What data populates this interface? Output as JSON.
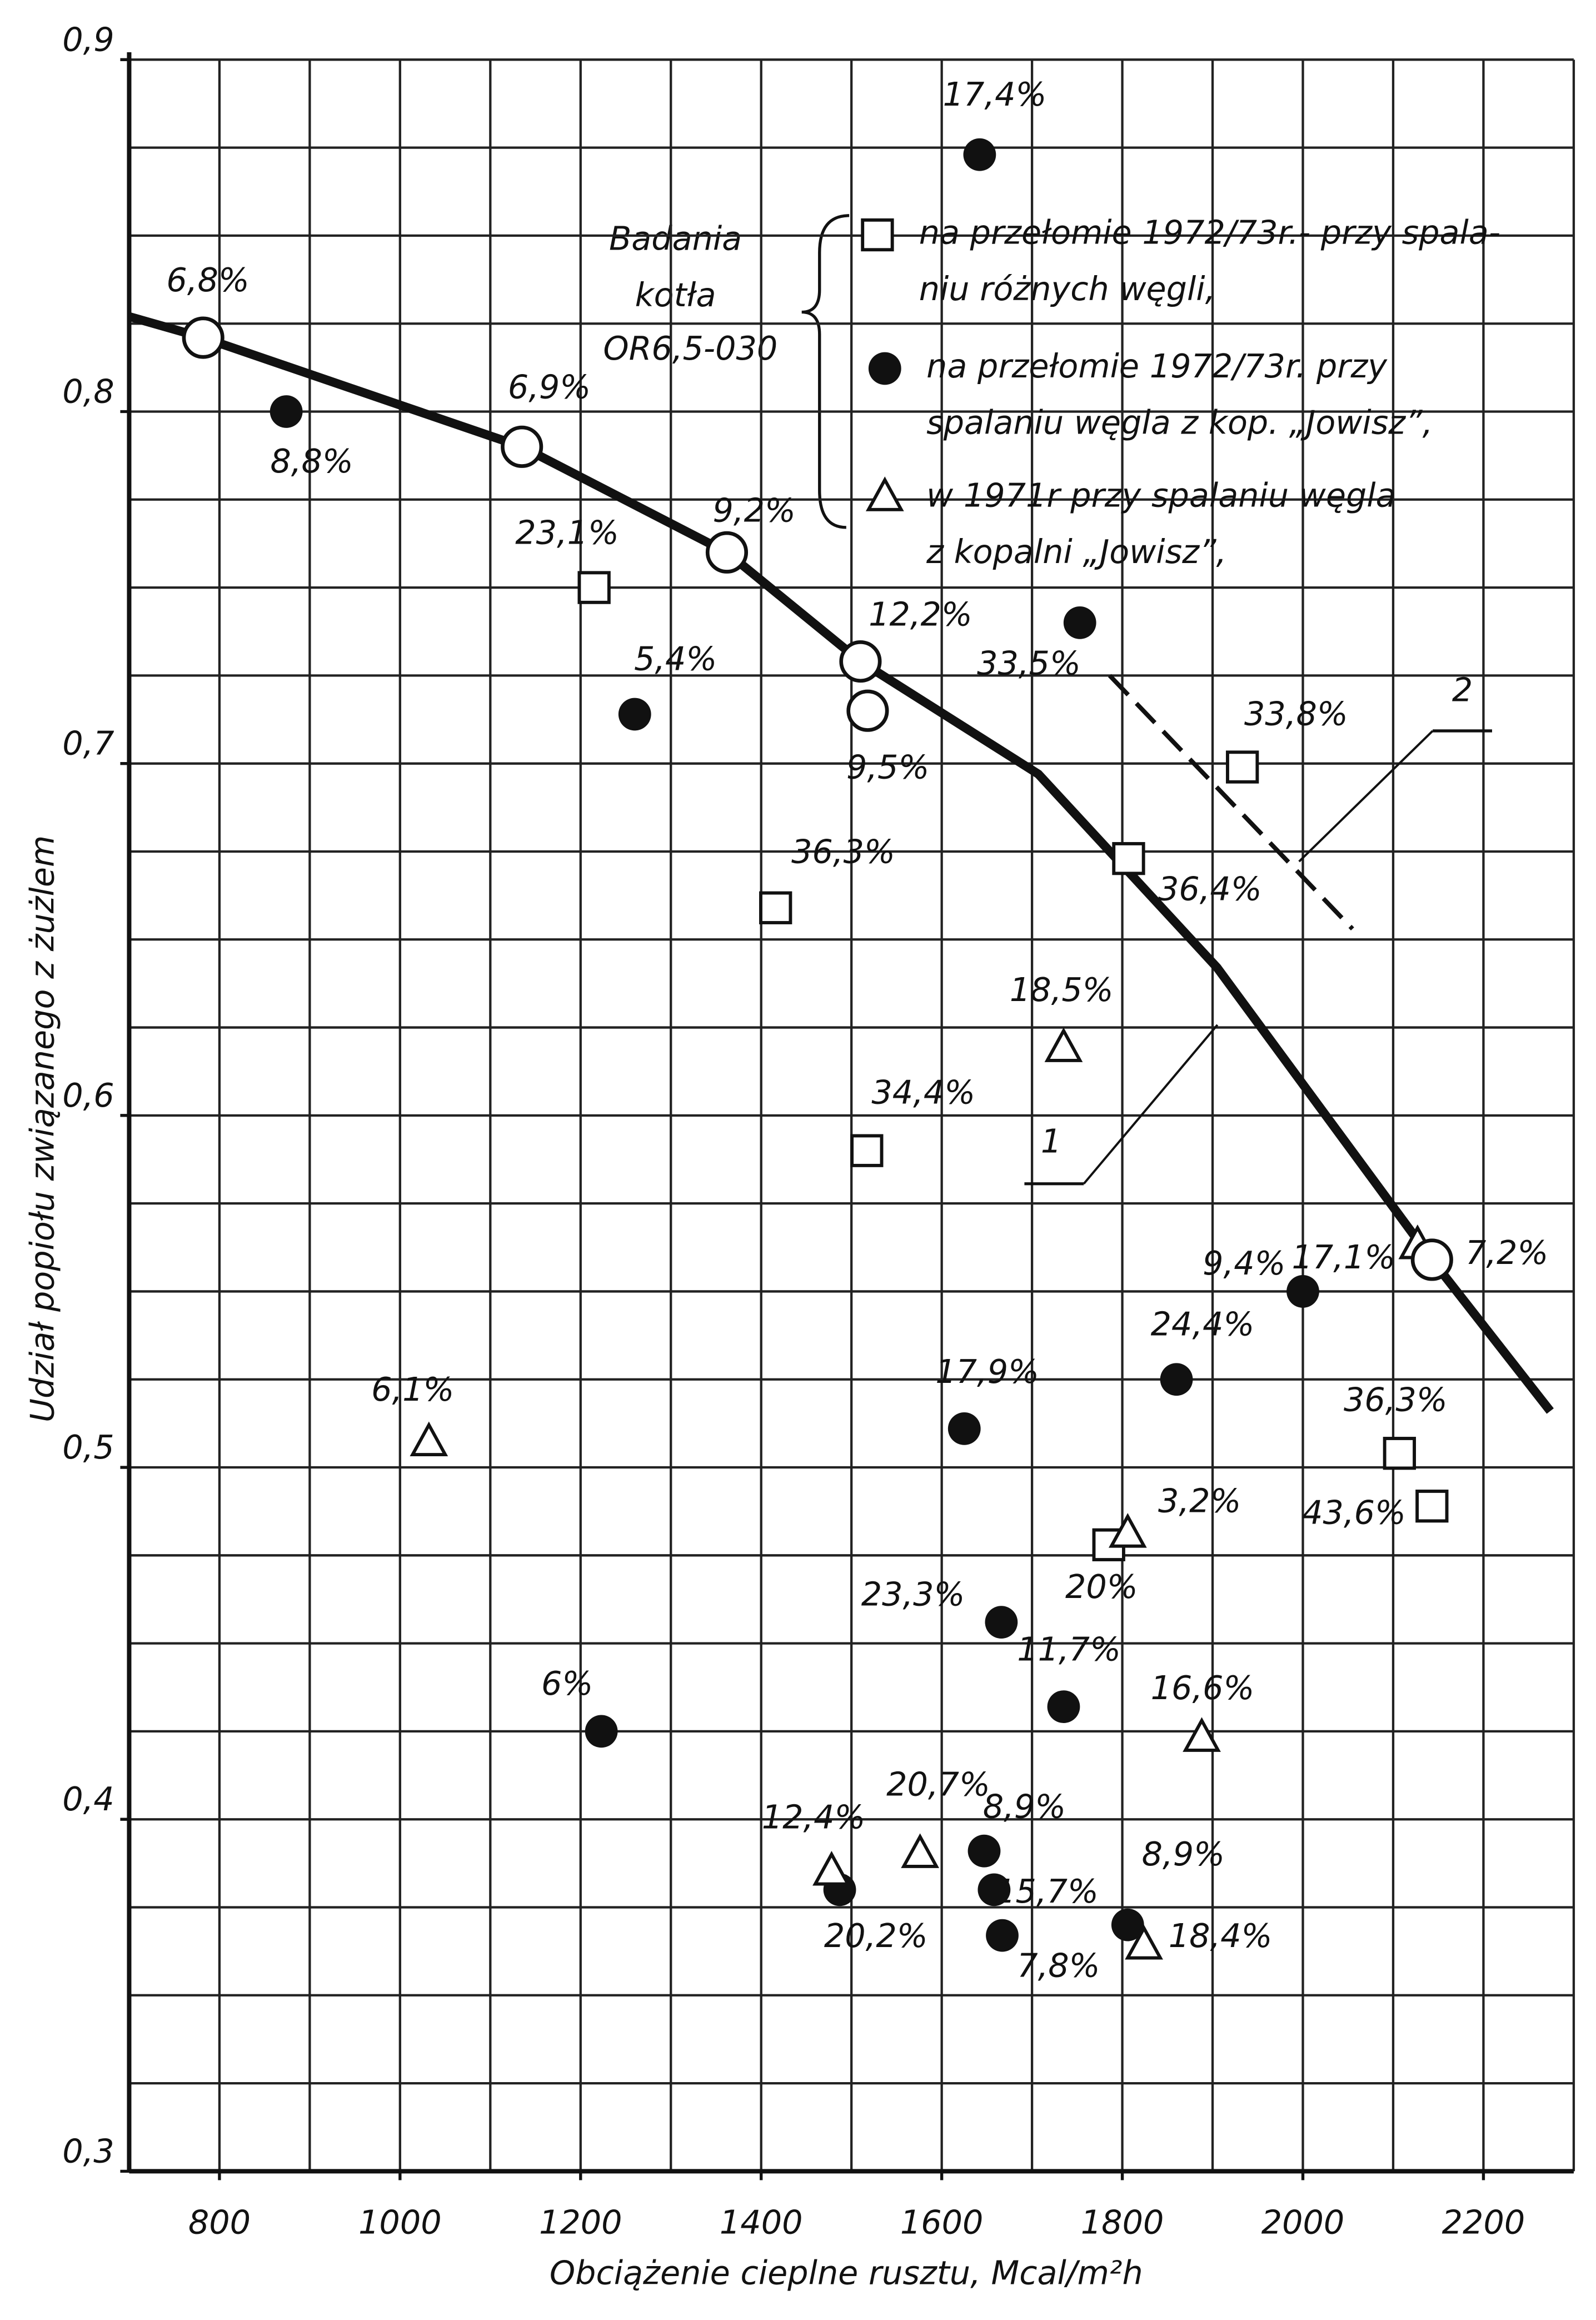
{
  "chart_data": {
    "type": "scatter",
    "x_label": "Obciążenie cieplne rusztu, Mcal/m²h",
    "y_label": "Udział popiołu związanego z żużlem",
    "legend_title": [
      "Badania",
      "kotła",
      "OR6,5-030"
    ],
    "xlim": [
      700,
      2300
    ],
    "ylim": [
      0.3,
      0.9
    ],
    "xticks": [
      800,
      1000,
      1200,
      1400,
      1600,
      1800,
      2000,
      2200
    ],
    "yticks": [
      {
        "value": 0.3,
        "label": "0,3"
      },
      {
        "value": 0.4,
        "label": "0,4"
      },
      {
        "value": 0.5,
        "label": "0,5"
      },
      {
        "value": 0.6,
        "label": "0,6"
      },
      {
        "value": 0.7,
        "label": "0,7"
      },
      {
        "value": 0.8,
        "label": "0,8"
      },
      {
        "value": 0.9,
        "label": "0,9"
      }
    ],
    "grid": true,
    "grid_x": [
      700,
      800,
      900,
      1000,
      1100,
      1200,
      1300,
      1400,
      1500,
      1600,
      1700,
      1800,
      1900,
      2000,
      2100,
      2200,
      2300
    ],
    "grid_y": [
      0.3,
      0.325,
      0.35,
      0.375,
      0.4,
      0.425,
      0.45,
      0.475,
      0.5,
      0.525,
      0.55,
      0.575,
      0.6,
      0.625,
      0.65,
      0.675,
      0.7,
      0.725,
      0.75,
      0.775,
      0.8,
      0.825,
      0.85,
      0.875,
      0.9
    ],
    "series": [
      {
        "name": "na przełomie 1972/73r.- przy spala-\nniu różnych węgli,",
        "marker": "square",
        "x": [
          1215,
          1933,
          1807,
          1416,
          1517,
          2107,
          2143,
          1785
        ],
        "values": [
          0.75,
          0.699,
          0.673,
          0.659,
          0.59,
          0.504,
          0.489,
          0.478
        ],
        "value_labels": [
          "23,1%",
          "33,8%",
          "36,4%",
          "36,3%",
          "34,4%",
          "36,3%",
          "43,6%",
          "20%"
        ]
      },
      {
        "name": "na przełomie 1972/73r. przy\nspalaniu węgla z kop. „Jowisz”,",
        "marker": "circle",
        "x": [
          1642,
          874,
          1260,
          1753,
          2000,
          1860,
          1625,
          1666,
          1735,
          1223,
          1647,
          1487,
          1658,
          1667,
          1806
        ],
        "values": [
          0.873,
          0.8,
          0.714,
          0.74,
          0.55,
          0.525,
          0.511,
          0.456,
          0.432,
          0.425,
          0.391,
          0.38,
          0.38,
          0.367,
          0.37
        ],
        "value_labels": [
          "17,4%",
          "8,8%",
          "5,4%",
          "33,5%",
          "9,4%",
          "24,4%",
          "17,9%",
          "23,3%",
          "11,7%",
          "6%",
          "8,9%",
          "20,2%",
          "15,7%",
          "7,8%",
          "8,9%"
        ]
      },
      {
        "name": "w 1971r przy spalaniu węgla\nz kopalni „Jowisz”,",
        "marker": "triangle",
        "x": [
          1735,
          1032,
          1806,
          1888,
          1576,
          1478,
          1824,
          2127
        ],
        "values": [
          0.619,
          0.507,
          0.481,
          0.423,
          0.39,
          0.385,
          0.364,
          0.563
        ],
        "value_labels": [
          "18,5%",
          "6,1%",
          "3,2%",
          "16,6%",
          "20,7%",
          "12,4%",
          "18,4%",
          "17,1%"
        ]
      },
      {
        "marker": "circle-open",
        "x": [
          782,
          1135,
          1362,
          1510,
          1518,
          2143
        ],
        "values": [
          0.821,
          0.79,
          0.76,
          0.729,
          0.715,
          0.559
        ],
        "value_labels": [
          "6,8%",
          "6,9%",
          "9,2%",
          "12,2%",
          "9,5%",
          "7,2%"
        ]
      }
    ],
    "lines": [
      {
        "label": "1",
        "style": "solid",
        "x": [
          700,
          782,
          1135,
          1362,
          1510,
          1707,
          1905,
          2143,
          2274
        ],
        "values": [
          0.827,
          0.821,
          0.79,
          0.76,
          0.729,
          0.697,
          0.642,
          0.559,
          0.516
        ]
      },
      {
        "label": "2",
        "style": "dashed",
        "x": [
          1786,
          2055
        ],
        "values": [
          0.725,
          0.653
        ]
      }
    ]
  }
}
